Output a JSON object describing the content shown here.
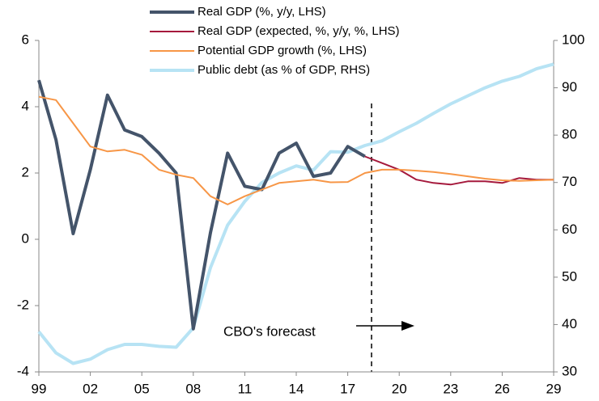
{
  "chart_data": {
    "type": "line",
    "categories": [
      "99",
      null,
      null,
      "02",
      null,
      null,
      "05",
      null,
      null,
      "08",
      null,
      null,
      "11",
      null,
      null,
      "14",
      null,
      null,
      "17",
      null,
      null,
      "20",
      null,
      null,
      "23",
      null,
      null,
      "26",
      null,
      null,
      "29"
    ],
    "series": [
      {
        "name": "Real GDP (%, y/y, LHS)",
        "color": "#44546a",
        "width": 4,
        "values": [
          4.8,
          3.0,
          0.17,
          2.1,
          4.35,
          3.3,
          3.1,
          2.6,
          2.0,
          -2.7,
          0.2,
          2.6,
          1.6,
          1.5,
          2.6,
          2.9,
          1.9,
          2.0,
          2.8,
          2.5,
          null,
          null,
          null,
          null,
          null,
          null,
          null,
          null,
          null,
          null,
          null
        ]
      },
      {
        "name": "Real GDP (expected, %, y/y, %, LHS)",
        "color": "#a5193c",
        "width": 2,
        "values": [
          null,
          null,
          null,
          null,
          null,
          null,
          null,
          null,
          null,
          null,
          null,
          null,
          null,
          null,
          null,
          null,
          null,
          null,
          null,
          2.5,
          2.3,
          2.1,
          1.8,
          1.7,
          1.65,
          1.75,
          1.75,
          1.7,
          1.85,
          1.8,
          1.8
        ]
      },
      {
        "name": "Potential GDP growth (%, LHS)",
        "color": "#f79646",
        "width": 2,
        "values": [
          4.3,
          4.2,
          3.5,
          2.8,
          2.65,
          2.7,
          2.55,
          2.1,
          1.95,
          1.85,
          1.3,
          1.05,
          1.3,
          1.5,
          1.7,
          1.75,
          1.8,
          1.72,
          1.73,
          2.0,
          2.1,
          2.1,
          2.07,
          2.03,
          1.97,
          1.9,
          1.83,
          1.78,
          1.76,
          1.78,
          1.8
        ]
      },
      {
        "name": "Public debt (as % of GDP, RHS)",
        "color": "#b7e3f4",
        "width": 4,
        "axis": "y2",
        "values": [
          38.5,
          34,
          31.8,
          32.7,
          34.7,
          35.8,
          35.8,
          35.4,
          35.2,
          39.3,
          52,
          61,
          66,
          70,
          72,
          73.5,
          72.6,
          76.5,
          76.4,
          77.8,
          78.8,
          80.7,
          82.5,
          84.6,
          86.6,
          88.3,
          90,
          91.4,
          92.4,
          94,
          95
        ]
      }
    ],
    "ylim": [
      -4,
      6
    ],
    "yticks": [
      -4,
      -2,
      0,
      2,
      4,
      6
    ],
    "y2lim": [
      30,
      100
    ],
    "y2ticks": [
      30,
      40,
      50,
      60,
      70,
      80,
      90,
      100
    ],
    "annotation": "CBO's forecast"
  }
}
